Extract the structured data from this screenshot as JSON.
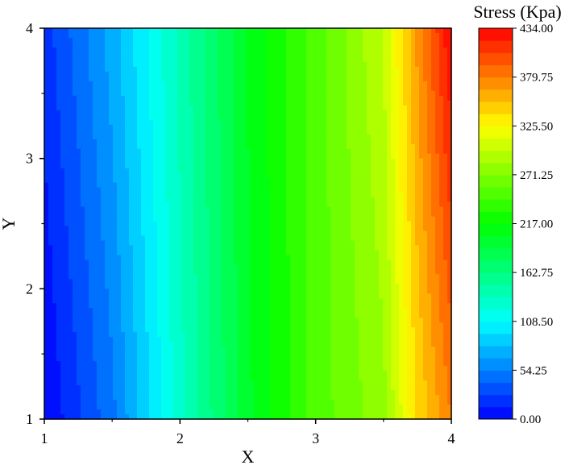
{
  "chart_data": {
    "type": "heatmap",
    "title": "",
    "xlabel": "X",
    "ylabel": "Y",
    "xlim": [
      1,
      4
    ],
    "ylim": [
      1,
      4
    ],
    "x_ticks": [
      "1",
      "2",
      "3",
      "4"
    ],
    "y_ticks": [
      "1",
      "2",
      "3",
      "4"
    ],
    "colorbar": {
      "title": "Stress (Kpa)",
      "range": [
        0,
        434
      ],
      "tick_labels": [
        "0.00",
        "54.25",
        "108.50",
        "162.75",
        "217.00",
        "271.25",
        "325.50",
        "379.75",
        "434.00"
      ],
      "levels": 32,
      "colors": [
        "#0000ff",
        "#00ffff",
        "#00ff00",
        "#ffff00",
        "#ff0000"
      ]
    },
    "grid": false,
    "x_samples": [
      1.0,
      1.5,
      2.0,
      2.5,
      3.0,
      3.5,
      3.75,
      4.0
    ],
    "stress_at_y1": [
      0,
      50,
      130,
      200,
      250,
      280,
      340,
      380
    ],
    "stress_at_y4": [
      20,
      75,
      140,
      205,
      250,
      300,
      370,
      434
    ]
  }
}
